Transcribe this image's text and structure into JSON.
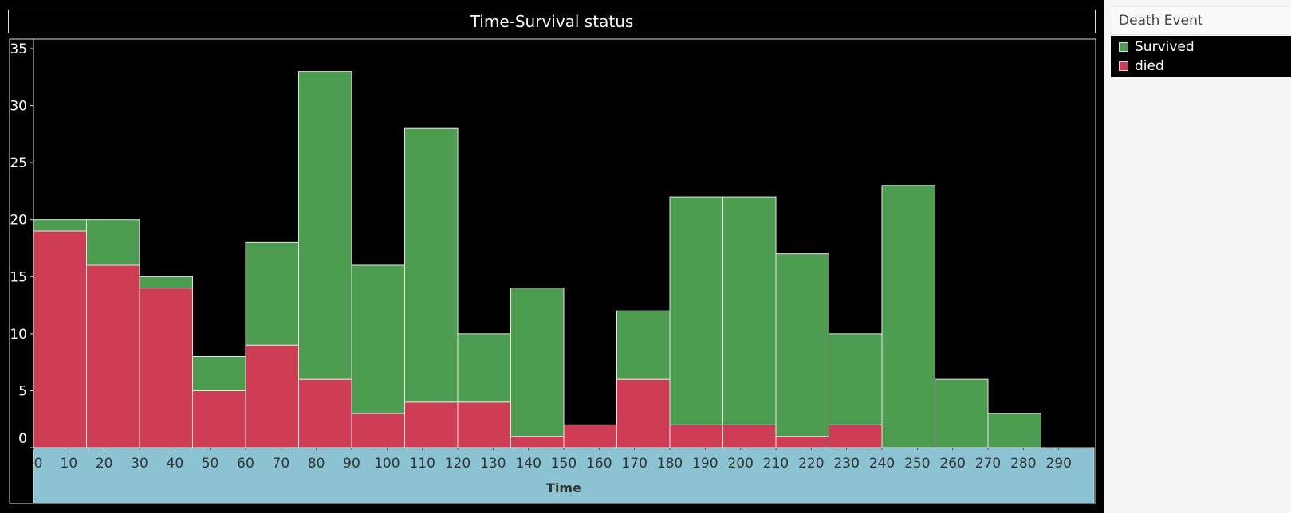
{
  "chart_data": {
    "type": "bar",
    "stacked": true,
    "title": "Time-Survival status",
    "xlabel": "Time",
    "ylabel": "",
    "xlim": [
      0,
      300
    ],
    "ylim": [
      0,
      35
    ],
    "bin_width": 15,
    "bin_starts": [
      0,
      15,
      30,
      45,
      60,
      75,
      90,
      105,
      120,
      135,
      150,
      165,
      180,
      195,
      210,
      225,
      240,
      255,
      270,
      285
    ],
    "x_ticks": [
      "0",
      "10",
      "20",
      "30",
      "40",
      "50",
      "60",
      "70",
      "80",
      "90",
      "100",
      "110",
      "120",
      "130",
      "140",
      "150",
      "160",
      "170",
      "180",
      "190",
      "200",
      "210",
      "220",
      "230",
      "240",
      "250",
      "260",
      "270",
      "280",
      "290"
    ],
    "y_ticks": [
      "0",
      "5",
      "10",
      "15",
      "20",
      "25",
      "30",
      "35"
    ],
    "series": [
      {
        "name": "died",
        "values": [
          19,
          16,
          14,
          5,
          9,
          6,
          3,
          4,
          4,
          1,
          2,
          6,
          2,
          2,
          1,
          2,
          0,
          0,
          0,
          0
        ]
      },
      {
        "name": "Survived",
        "values": [
          1,
          4,
          1,
          3,
          9,
          27,
          13,
          24,
          6,
          13,
          0,
          6,
          20,
          20,
          16,
          8,
          23,
          6,
          3,
          0
        ]
      }
    ],
    "grid": false,
    "legend_position": "right"
  },
  "legend": {
    "title": "Death Event",
    "items": [
      {
        "label": "Survived",
        "color": "#4c9d50"
      },
      {
        "label": "died",
        "color": "#cf3d55"
      }
    ]
  },
  "colors": {
    "died": "#cf3d55",
    "Survived": "#4c9d50",
    "axis_band": "#8cc3d2",
    "background": "#000000"
  }
}
